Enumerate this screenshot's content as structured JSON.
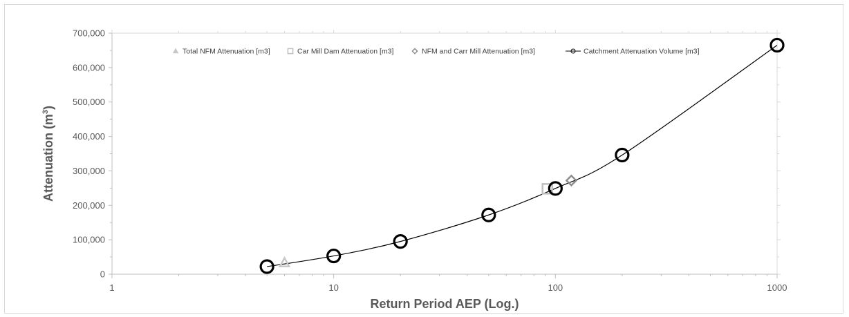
{
  "chart_data": {
    "type": "scatter",
    "xscale": "log",
    "xlim": [
      1,
      1000
    ],
    "ylim": [
      0,
      700000
    ],
    "xticks": [
      1,
      10,
      100,
      1000
    ],
    "xtick_labels": [
      "1",
      "10",
      "100",
      "1000"
    ],
    "yticks": [
      0,
      100000,
      200000,
      300000,
      400000,
      500000,
      600000,
      700000
    ],
    "ytick_labels": [
      "0",
      "100,000",
      "200,000",
      "300,000",
      "400,000",
      "500,000",
      "600,000",
      "700,000"
    ],
    "xlabel": "Return Period AEP (Log.)",
    "ylabel_main": "Attenuation (m",
    "ylabel_sup": "3",
    "ylabel_end": ")",
    "grid": false,
    "legend_position": "top",
    "series": [
      {
        "name": "Total NFM Attenuation [m3]",
        "marker": "triangle",
        "color": "#c8c8c8",
        "points": [
          [
            6,
            33000
          ]
        ]
      },
      {
        "name": "Car Mill Dam Attenuation [m3]",
        "marker": "square",
        "color": "#bfbfbf",
        "points": [
          [
            92,
            248000
          ]
        ]
      },
      {
        "name": "NFM and Carr Mill Attenuation [m3]",
        "marker": "diamond",
        "color": "#8c8c8c",
        "points": [
          [
            118,
            272000
          ]
        ]
      },
      {
        "name": "Catchment Attenuation Volume [m3]",
        "marker": "circle-line",
        "color": "#000000",
        "points": [
          [
            5,
            22000
          ],
          [
            10,
            53000
          ],
          [
            20,
            95000
          ],
          [
            50,
            172000
          ],
          [
            100,
            249000
          ],
          [
            200,
            346000
          ],
          [
            1000,
            665000
          ]
        ]
      }
    ]
  }
}
